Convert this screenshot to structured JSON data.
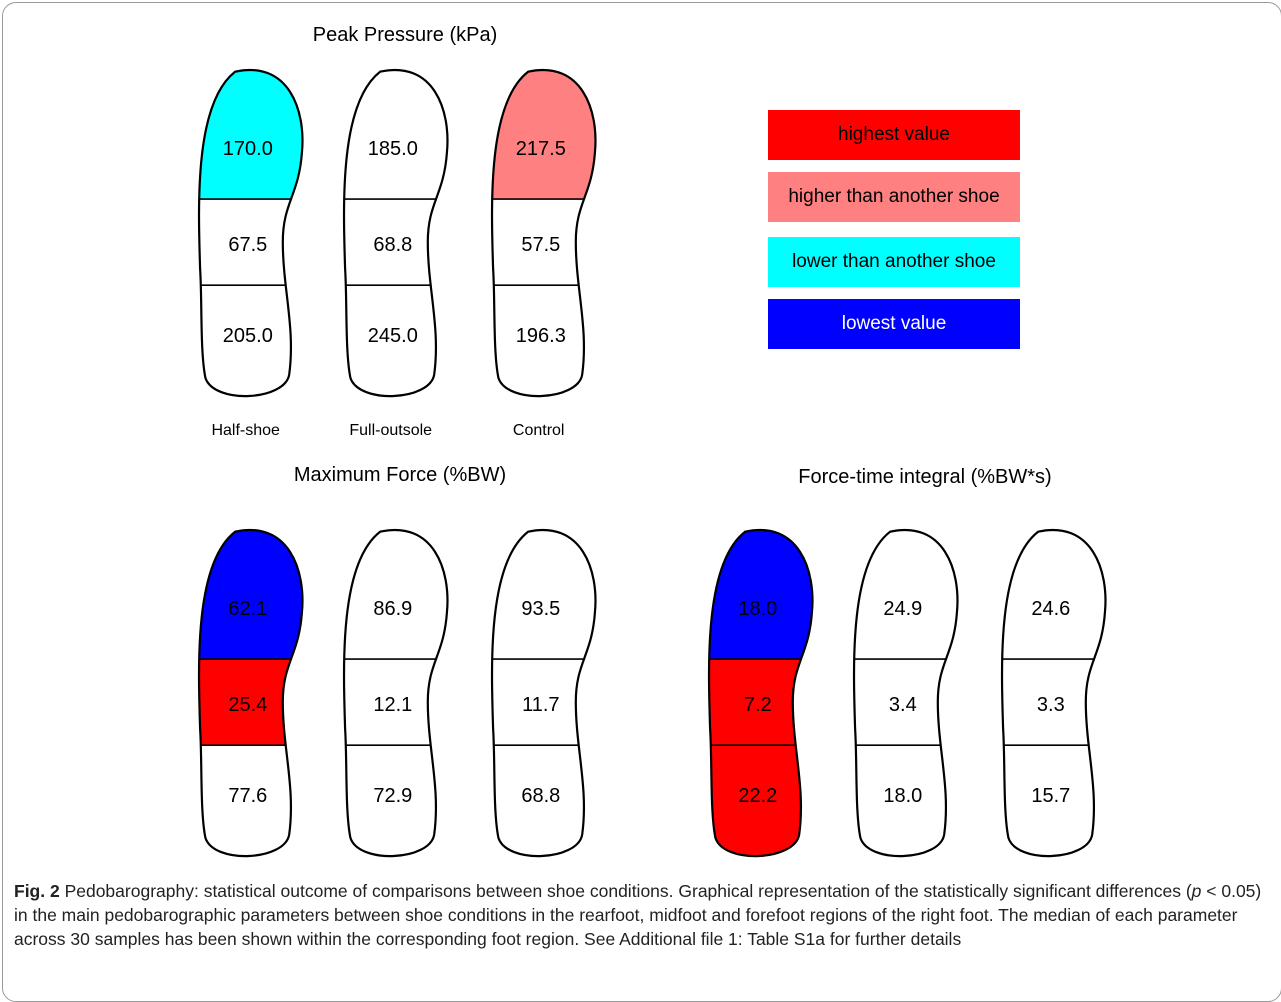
{
  "figure": {
    "colors": {
      "highest": "#ff0000",
      "higher": "#ff8080",
      "lower": "#00ffff",
      "lowest": "#0000ff",
      "none": "#ffffff"
    },
    "groups": [
      {
        "title": "Peak Pressure (kPa)",
        "shoes": [
          {
            "label": "Half-shoe",
            "forefoot": {
              "value": "170.0",
              "status": "lower"
            },
            "midfoot": {
              "value": "67.5",
              "status": "none"
            },
            "rearfoot": {
              "value": "205.0",
              "status": "none"
            }
          },
          {
            "label": "Full-outsole",
            "forefoot": {
              "value": "185.0",
              "status": "none"
            },
            "midfoot": {
              "value": "68.8",
              "status": "none"
            },
            "rearfoot": {
              "value": "245.0",
              "status": "none"
            }
          },
          {
            "label": "Control",
            "forefoot": {
              "value": "217.5",
              "status": "higher"
            },
            "midfoot": {
              "value": "57.5",
              "status": "none"
            },
            "rearfoot": {
              "value": "196.3",
              "status": "none"
            }
          }
        ]
      },
      {
        "title": "Maximum Force (%BW)",
        "shoes": [
          {
            "label": "Half-shoe",
            "forefoot": {
              "value": "62.1",
              "status": "lowest"
            },
            "midfoot": {
              "value": "25.4",
              "status": "highest"
            },
            "rearfoot": {
              "value": "77.6",
              "status": "none"
            }
          },
          {
            "label": "Full-outsole",
            "forefoot": {
              "value": "86.9",
              "status": "none"
            },
            "midfoot": {
              "value": "12.1",
              "status": "none"
            },
            "rearfoot": {
              "value": "72.9",
              "status": "none"
            }
          },
          {
            "label": "Control",
            "forefoot": {
              "value": "93.5",
              "status": "none"
            },
            "midfoot": {
              "value": "11.7",
              "status": "none"
            },
            "rearfoot": {
              "value": "68.8",
              "status": "none"
            }
          }
        ]
      },
      {
        "title": "Force-time integral (%BW*s)",
        "shoes": [
          {
            "label": "Half-shoe",
            "forefoot": {
              "value": "18.0",
              "status": "lowest"
            },
            "midfoot": {
              "value": "7.2",
              "status": "highest"
            },
            "rearfoot": {
              "value": "22.2",
              "status": "highest"
            }
          },
          {
            "label": "Full-outsole",
            "forefoot": {
              "value": "24.9",
              "status": "none"
            },
            "midfoot": {
              "value": "3.4",
              "status": "none"
            },
            "rearfoot": {
              "value": "18.0",
              "status": "none"
            }
          },
          {
            "label": "Control",
            "forefoot": {
              "value": "24.6",
              "status": "none"
            },
            "midfoot": {
              "value": "3.3",
              "status": "none"
            },
            "rearfoot": {
              "value": "15.7",
              "status": "none"
            }
          }
        ]
      }
    ],
    "legend": [
      {
        "label": "highest value",
        "status": "highest"
      },
      {
        "label": "higher than another shoe",
        "status": "higher"
      },
      {
        "label": "lower than another shoe",
        "status": "lower"
      },
      {
        "label": "lowest value",
        "status": "lowest"
      }
    ]
  },
  "caption": {
    "fig_label": "Fig. 2",
    "text_1": " Pedobarography: statistical outcome of comparisons between shoe conditions. Graphical representation of the statistically significant differences (",
    "p_symbol": "p",
    "text_2": " < 0.05) in the main pedobarographic parameters between shoe conditions in the rearfoot, midfoot and forefoot regions of the right foot. The median of each parameter across 30 samples has been shown within the corresponding foot region. See Additional file 1: Table S1a for further details"
  }
}
